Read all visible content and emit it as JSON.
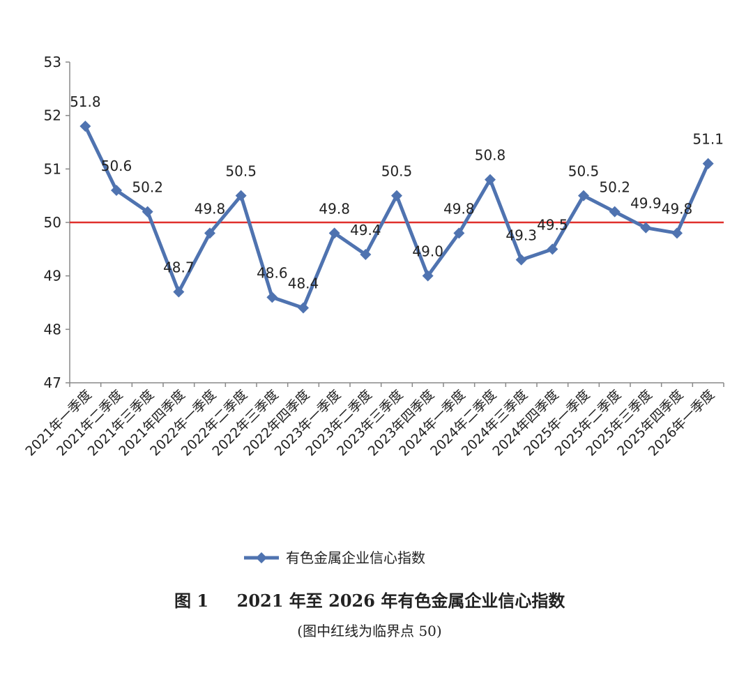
{
  "chart_data": {
    "type": "line",
    "figure_label": "图 1",
    "title": "2021 年至 2026 年有色金属企业信心指数",
    "subtitle": "(图中红线为临界点 50)",
    "categories": [
      "2021年一季度",
      "2021年二季度",
      "2021年三季度",
      "2021年四季度",
      "2022年一季度",
      "2022年二季度",
      "2022年三季度",
      "2022年四季度",
      "2023年一季度",
      "2023年二季度",
      "2023年三季度",
      "2023年四季度",
      "2024年一季度",
      "2024年二季度",
      "2024年三季度",
      "2024年四季度",
      "2025年一季度",
      "2025年二季度",
      "2025年三季度",
      "2025年四季度",
      "2026年一季度"
    ],
    "series": [
      {
        "name": "有色金属企业信心指数",
        "color": "#4f73b0",
        "values": [
          51.8,
          50.6,
          50.2,
          48.7,
          49.8,
          50.5,
          48.6,
          48.4,
          49.8,
          49.4,
          50.5,
          49.0,
          49.8,
          50.8,
          49.3,
          49.5,
          50.5,
          50.2,
          49.9,
          49.8,
          51.1
        ],
        "value_labels": [
          "51.8",
          "50.6",
          "50.2",
          "48.7",
          "49.8",
          "50.5",
          "48.6",
          "48.4",
          "49.8",
          "49.4",
          "50.5",
          "49.0",
          "49.8",
          "50.8",
          "49.3",
          "49.5",
          "50.5",
          "50.2",
          "49.9",
          "49.8",
          "51.1"
        ]
      }
    ],
    "ylim": [
      47,
      53
    ],
    "yticks": [
      47,
      48,
      49,
      50,
      51,
      52,
      53
    ],
    "reference_line": {
      "value": 50,
      "color": "#e0302c"
    },
    "legend": "bottom"
  }
}
